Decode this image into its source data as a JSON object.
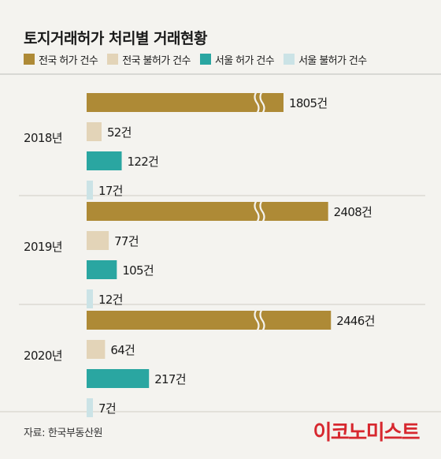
{
  "header": {
    "title": "토지거래허가 처리별 거래현황"
  },
  "legend": [
    {
      "label": "전국 허가 건수",
      "color": "#ae8a36"
    },
    {
      "label": "전국 불허가 건수",
      "color": "#e3d4b8"
    },
    {
      "label": "서울 허가 건수",
      "color": "#2aa6a1"
    },
    {
      "label": "서울 불허가 건수",
      "color": "#cbe3e6"
    }
  ],
  "chart_data": {
    "type": "bar",
    "orientation": "horizontal",
    "categories": [
      "2018년",
      "2019년",
      "2020년"
    ],
    "series": [
      {
        "name": "전국 허가 건수",
        "values": [
          1805,
          2408,
          2446
        ],
        "labels": [
          "1805건",
          "2408건",
          "2446건"
        ],
        "color": "#ae8a36"
      },
      {
        "name": "전국 불허가 건수",
        "values": [
          52,
          77,
          64
        ],
        "labels": [
          "52건",
          "77건",
          "64건"
        ],
        "color": "#e3d4b8"
      },
      {
        "name": "서울 허가 건수",
        "values": [
          122,
          105,
          217
        ],
        "labels": [
          "122건",
          "105건",
          "217건"
        ],
        "color": "#2aa6a1"
      },
      {
        "name": "서울 불허가 건수",
        "values": [
          17,
          12,
          7
        ],
        "labels": [
          "17건",
          "12건",
          "7건"
        ],
        "color": "#cbe3e6"
      }
    ],
    "axis_break": true,
    "grid": false,
    "legend_position": "top"
  },
  "footer": {
    "source": "자료: 한국부동산원",
    "brand": "이코노미스트"
  }
}
